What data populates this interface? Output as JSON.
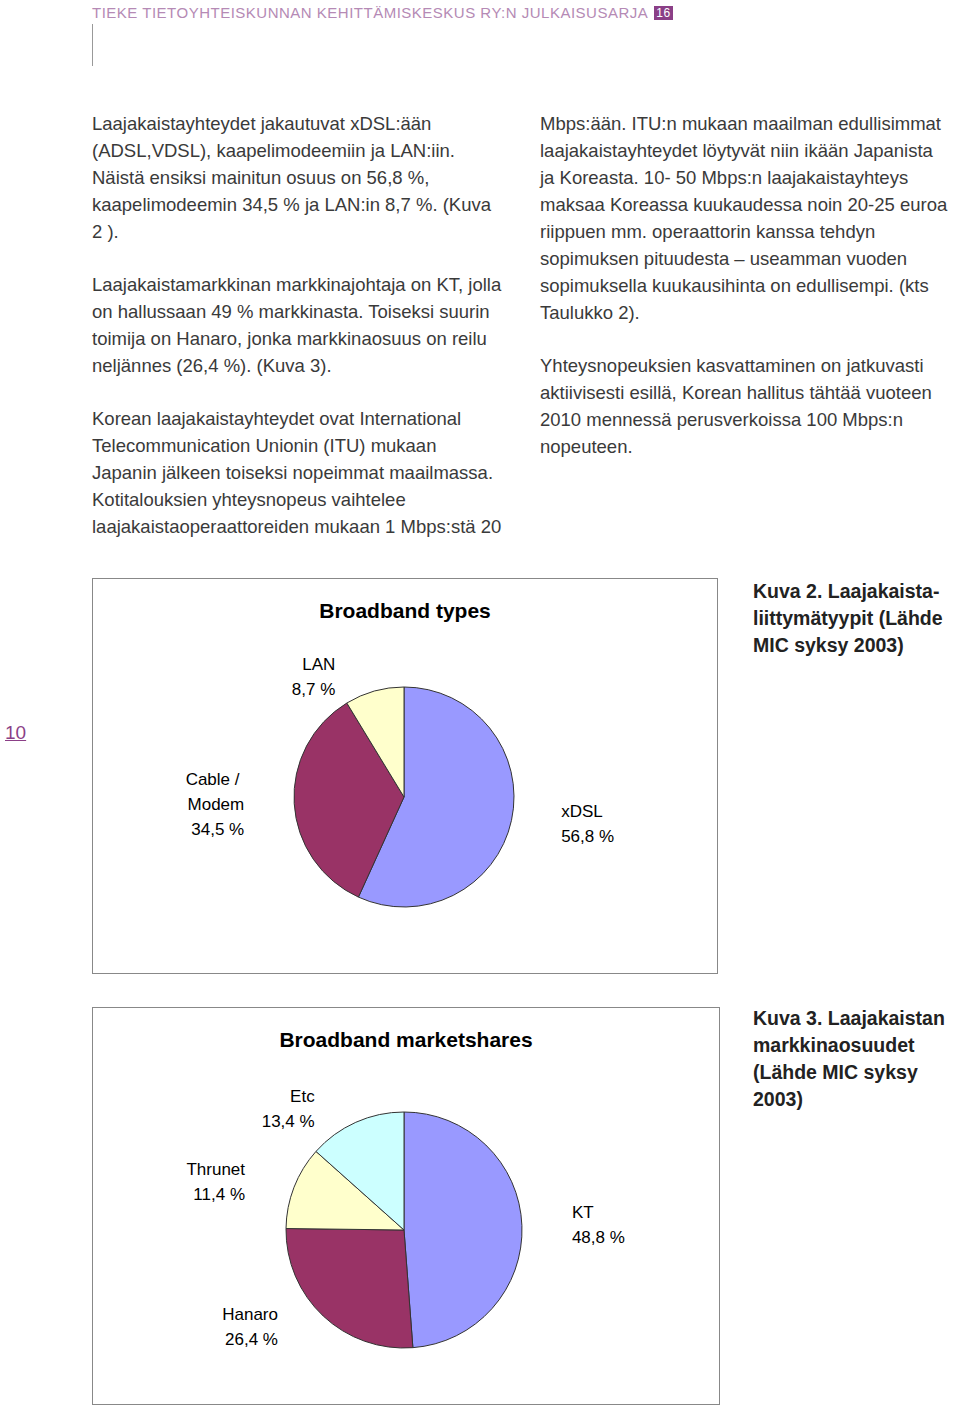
{
  "header": {
    "title": "TIEKE TIETOYHTEISKUNNAN KEHITTÄMISKESKUS RY:N JULKAISUSARJA",
    "number": "16"
  },
  "page_number": "10",
  "paragraphs": [
    "Laajakaistayhteydet jakautuvat xDSL:ään (ADSL,VDSL), kaapelimodeemiin ja LAN:iin. Näistä ensiksi mainitun osuus on 56,8 %, kaapelimodeemin 34,5 % ja LAN:in 8,7 %. (Kuva 2 ).",
    "Laajakaistamarkkinan markkinajohtaja on KT, jolla on hallussaan 49 % markkinasta. Toiseksi suurin toimija on Hanaro, jonka markkinaosuus on reilu neljännes (26,4 %). (Kuva 3).",
    "Korean laajakaistayhteydet ovat International Telecommunication Unionin (ITU) mukaan Japanin jälkeen toiseksi nopeimmat maailmassa. Kotitalouksien yhteysnopeus vaihtelee laajakaistaoperaattoreiden mukaan 1 Mbps:stä 20 Mbps:ään. ITU:n mukaan maailman edullisimmat laajakaistayhteydet löytyvät niin ikään Japanista ja Koreasta. 10- 50 Mbps:n laajakaistayhteys maksaa Koreassa kuukaudessa noin 20-25 euroa riippuen mm. operaattorin kanssa tehdyn sopimuksen pituudesta – useamman vuoden sopimuksella kuukausihinta on edullisempi. (kts Taulukko 2).",
    "Yhteysnopeuksien kasvattaminen on jatkuvasti aktiivisesti esillä, Korean hallitus tähtää vuoteen 2010 mennessä perusverkoissa 100 Mbps:n nopeuteen."
  ],
  "chart_data": [
    {
      "type": "pie",
      "title": "Broadband types",
      "categories": [
        "xDSL",
        "Cable / Modem",
        "LAN"
      ],
      "values": [
        56.8,
        34.5,
        8.7
      ],
      "value_labels": [
        "56,8 %",
        "34,5 %",
        "8,7 %"
      ],
      "colors": [
        "#9999ff",
        "#993366",
        "#ffffcc"
      ],
      "data_labels": true,
      "caption": {
        "label": "Kuva 2.",
        "text": "Laajakaista­liittymätyypit (Lähde MIC syksy 2003)"
      }
    },
    {
      "type": "pie",
      "title": "Broadband marketshares",
      "categories": [
        "KT",
        "Hanaro",
        "Thrunet",
        "Etc"
      ],
      "values": [
        48.8,
        26.4,
        11.4,
        13.4
      ],
      "value_labels": [
        "48,8 %",
        "26,4 %",
        "11,4 %",
        "13,4 %"
      ],
      "colors": [
        "#9999ff",
        "#993366",
        "#ffffcc",
        "#ccffff"
      ],
      "data_labels": true,
      "caption": {
        "label": "Kuva 3.",
        "text": "Laajakaistan markkinaosuudet (Lähde MIC syksy 2003)"
      }
    }
  ]
}
